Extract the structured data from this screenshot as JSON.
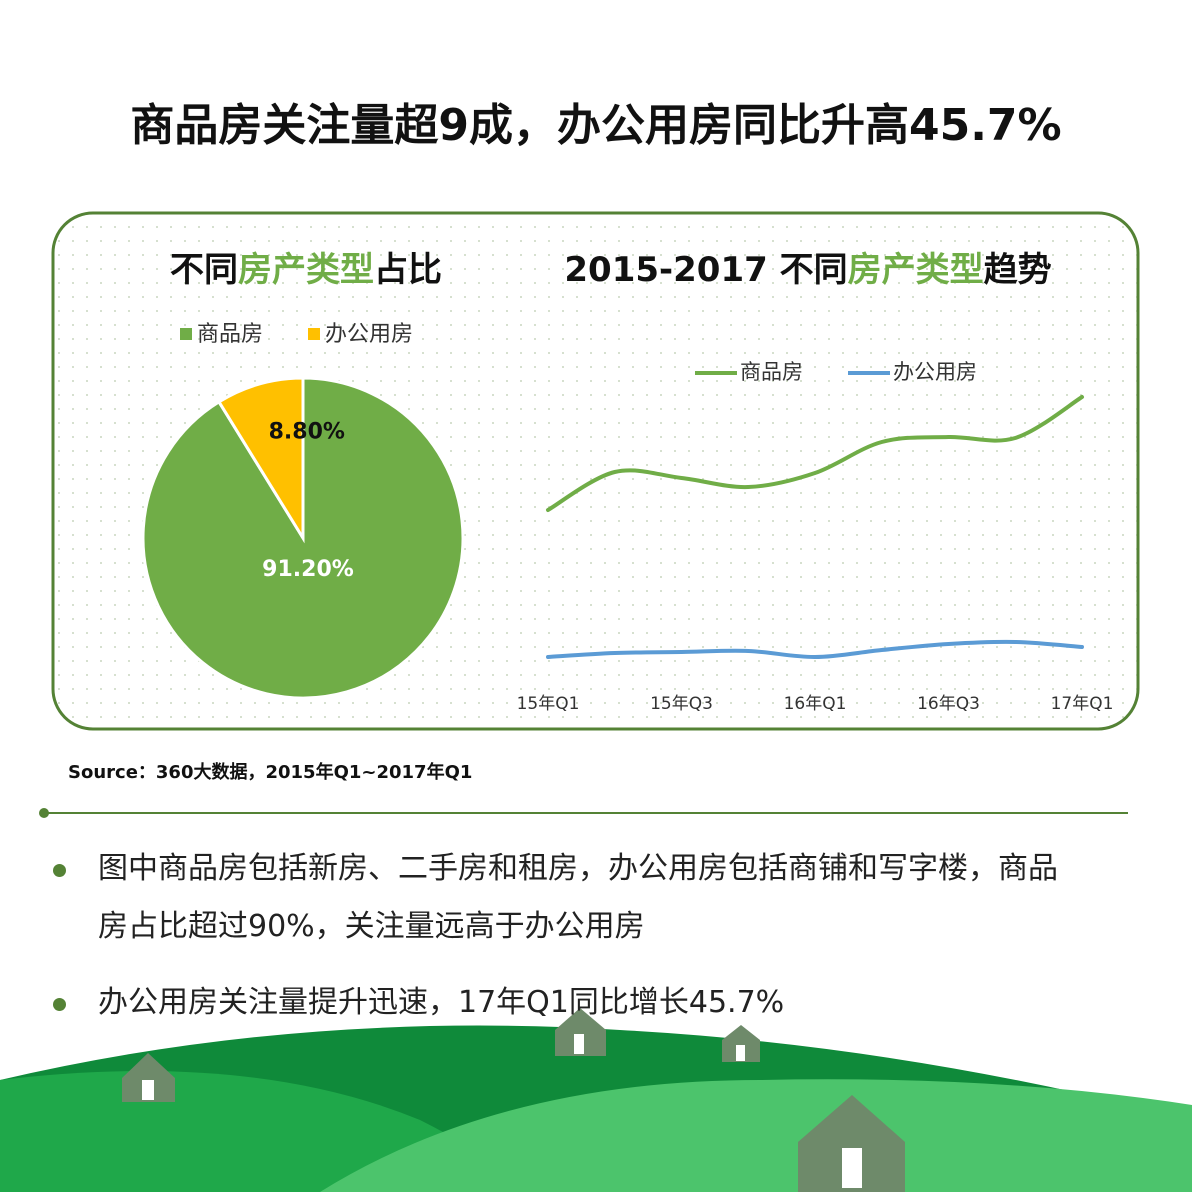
{
  "title": "商品房关注量超9成，办公用房同比升高45.7%",
  "source": "Source：360大数据，2015年Q1~2017年Q1",
  "bullets": [
    "图中商品房包括新房、二手房和租房，办公用房包括商铺和写字楼，商品房占比超过90%，关注量远高于办公用房",
    "办公用房关注量提升迅速，17年Q1同比增长45.7%"
  ],
  "chart_data": [
    {
      "type": "pie",
      "title": [
        "不同",
        "房产类型",
        "占比"
      ],
      "title_colors": [
        "#111111",
        "#70ad47",
        "#111111"
      ],
      "categories": [
        "商品房",
        "办公用房"
      ],
      "values": [
        91.2,
        8.8
      ],
      "value_labels": [
        "91.20%",
        "8.80%"
      ],
      "colors": [
        "#70ad47",
        "#ffc000"
      ],
      "label_colors": [
        "#ffffff",
        "#111111"
      ],
      "legend": "top"
    },
    {
      "type": "line",
      "title": [
        "2015-2017 不同",
        "房产类型",
        "趋势"
      ],
      "title_colors": [
        "#111111",
        "#70ad47",
        "#111111"
      ],
      "categories": [
        "15年Q1",
        null,
        "15年Q3",
        null,
        "16年Q1",
        null,
        "16年Q3",
        null,
        "17年Q1"
      ],
      "ylim": [
        0,
        300
      ],
      "legend": "top",
      "smooth": true,
      "series": [
        {
          "name": "商品房",
          "color": "#70ad47",
          "values": [
            170,
            208,
            202,
            193,
            207,
            238,
            243,
            242,
            283
          ]
        },
        {
          "name": "办公用房",
          "color": "#5b9bd5",
          "values": [
            23,
            27,
            28,
            29,
            23,
            30,
            36,
            38,
            33
          ]
        }
      ]
    }
  ]
}
